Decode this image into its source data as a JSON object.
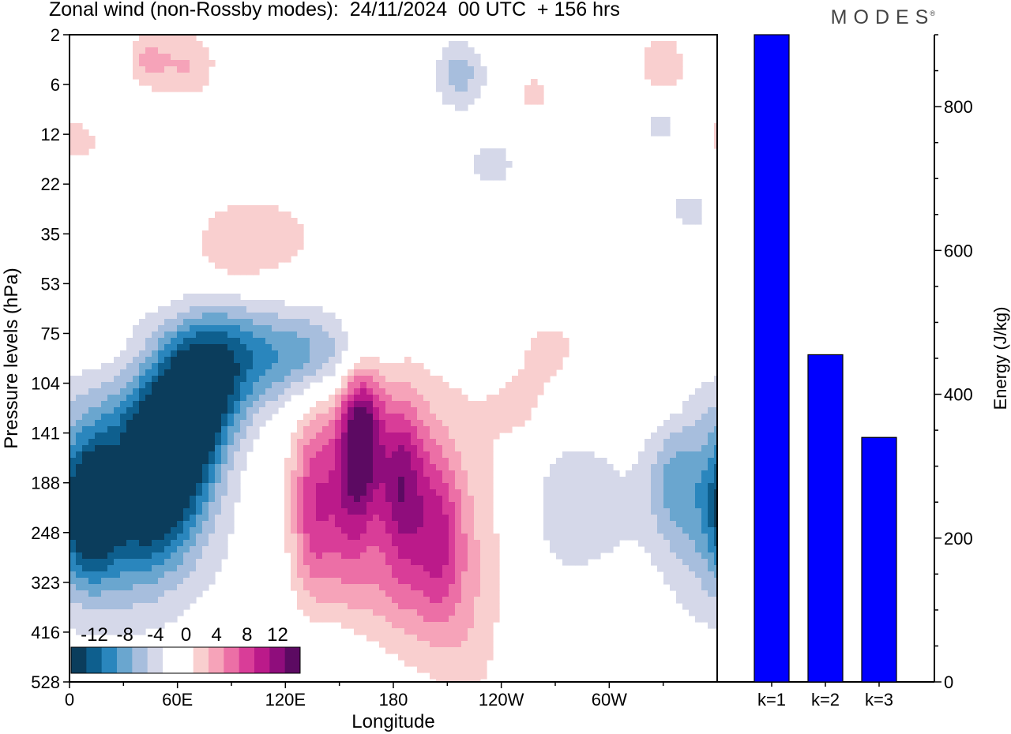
{
  "header": {
    "title": "Zonal wind (non-Rossby modes):  24/11/2024  00 UTC  + 156 hrs",
    "brand": "MODES",
    "brand_mark": "®"
  },
  "chart_data": [
    {
      "type": "heatmap",
      "title": "Zonal wind (non-Rossby modes):  24/11/2024  00 UTC  + 156 hrs",
      "xlabel": "Longitude",
      "ylabel": "Pressure levels (hPa)",
      "x_ticks": [
        "0",
        "60E",
        "120E",
        "180",
        "120W",
        "60W"
      ],
      "y_ticks": [
        "2",
        "6",
        "12",
        "22",
        "35",
        "53",
        "75",
        "104",
        "141",
        "188",
        "248",
        "323",
        "416",
        "528"
      ],
      "xlim": [
        0,
        360
      ],
      "colorbar": {
        "labels": [
          "-12",
          "-8",
          "-4",
          "0",
          "4",
          "8",
          "12"
        ],
        "colors": [
          "#0b3d5c",
          "#0e5f8e",
          "#2a86bd",
          "#6aa6cf",
          "#a7bedd",
          "#d5d8e9",
          "#ffffff",
          "#ffffff",
          "#f9cfcf",
          "#f6a3b9",
          "#ec6fa6",
          "#d93d98",
          "#bb1a8a",
          "#8f0d7c",
          "#5c0a62"
        ]
      },
      "features": [
        {
          "lon": 12,
          "level": 1.05,
          "v": -1.5,
          "sx": 10,
          "sy": 0.5
        },
        {
          "lon": 60,
          "level": 8.2,
          "v": -16,
          "sx": 20,
          "sy": 1.3,
          "r": -0.6
        },
        {
          "lon": 30,
          "level": 8.6,
          "v": -8,
          "sx": 30,
          "sy": 1.6,
          "r": -0.3
        },
        {
          "lon": 12,
          "level": 9.6,
          "v": -11,
          "sx": 10,
          "sy": 0.9
        },
        {
          "lon": 100,
          "level": 6.5,
          "v": -8,
          "sx": 35,
          "sy": 0.9,
          "r": -0.35
        },
        {
          "lon": 145,
          "level": 6.5,
          "v": -3.5,
          "sx": 22,
          "sy": 0.5
        },
        {
          "lon": 74,
          "level": 10.2,
          "v": -2.5,
          "sx": 40,
          "sy": 1.5
        },
        {
          "lon": 163,
          "level": 8.0,
          "v": 11,
          "sx": 8,
          "sy": 1.0
        },
        {
          "lon": 155,
          "level": 9.2,
          "v": 7,
          "sx": 10,
          "sy": 1.4
        },
        {
          "lon": 135,
          "level": 9.5,
          "v": 7,
          "sx": 8,
          "sy": 1.3
        },
        {
          "lon": 185,
          "level": 9.0,
          "v": 10,
          "sx": 9,
          "sy": 1.2
        },
        {
          "lon": 205,
          "level": 10.0,
          "v": 7,
          "sx": 9,
          "sy": 1.2
        },
        {
          "lon": 175,
          "level": 9.5,
          "v": 3.5,
          "sx": 55,
          "sy": 2.4
        },
        {
          "lon": 105,
          "level": 5.0,
          "v": 2.5,
          "sx": 38,
          "sy": 0.7,
          "r": -0.3
        },
        {
          "lon": 222,
          "level": 11.5,
          "v": 2,
          "sx": 12,
          "sy": 1.8
        },
        {
          "lon": 270,
          "level": 9.4,
          "v": -3,
          "sx": 18,
          "sy": 1.4
        },
        {
          "lon": 335,
          "level": 9.0,
          "v": -4,
          "sx": 10,
          "sy": 0.8
        },
        {
          "lon": 350,
          "level": 9.5,
          "v": -2.5,
          "sx": 15,
          "sy": 1.5
        },
        {
          "lon": 300,
          "level": 9.5,
          "v": -2,
          "sx": 20,
          "sy": 1.2
        },
        {
          "lon": 65,
          "level": 0.6,
          "v": 4,
          "sx": 12,
          "sy": 0.5
        },
        {
          "lon": 43,
          "level": 0.5,
          "v": 4,
          "sx": 8,
          "sy": 0.4
        },
        {
          "lon": 217,
          "level": 0.8,
          "v": -5,
          "sx": 10,
          "sy": 0.5
        },
        {
          "lon": 330,
          "level": 0.7,
          "v": 4,
          "sx": 10,
          "sy": 0.5
        },
        {
          "lon": 330,
          "level": 1.7,
          "v": -3,
          "sx": 10,
          "sy": 0.5
        },
        {
          "lon": 5,
          "level": 2.0,
          "v": 2.5,
          "sx": 15,
          "sy": 0.7
        },
        {
          "lon": 100,
          "level": 3.8,
          "v": 2.5,
          "sx": 25,
          "sy": 0.5
        },
        {
          "lon": 258,
          "level": 1.2,
          "v": 2.5,
          "sx": 10,
          "sy": 0.4
        },
        {
          "lon": 268,
          "level": 6.3,
          "v": 2.5,
          "sx": 12,
          "sy": 0.5
        },
        {
          "lon": 235,
          "level": 2.6,
          "v": -2.5,
          "sx": 15,
          "sy": 0.5
        },
        {
          "lon": 345,
          "level": 3.5,
          "v": -2.5,
          "sx": 12,
          "sy": 0.5
        },
        {
          "lon": 90,
          "level": 4.5,
          "v": 2.2,
          "sx": 14,
          "sy": 0.4
        },
        {
          "lon": 30,
          "level": 6.6,
          "v": 2.0,
          "sx": 20,
          "sy": 0.5
        },
        {
          "lon": 255,
          "level": 7.5,
          "v": 2.2,
          "sx": 15,
          "sy": 0.6
        },
        {
          "lon": 325,
          "level": 7.2,
          "v": 2.2,
          "sx": 10,
          "sy": 0.4
        },
        {
          "lon": 185,
          "level": 11.3,
          "v": 2.5,
          "sx": 20,
          "sy": 1.0
        },
        {
          "lon": 150,
          "level": 12.6,
          "v": -2.2,
          "sx": 25,
          "sy": 0.8
        }
      ]
    },
    {
      "type": "bar",
      "categories": [
        "k=1",
        "k=2",
        "k=3"
      ],
      "values": [
        900,
        455,
        340
      ],
      "ylabel": "Energy (J/kg)",
      "ylim": [
        0,
        900
      ],
      "y_ticks": [
        0,
        200,
        400,
        600,
        800
      ],
      "bar_color": "#0000ff"
    }
  ]
}
